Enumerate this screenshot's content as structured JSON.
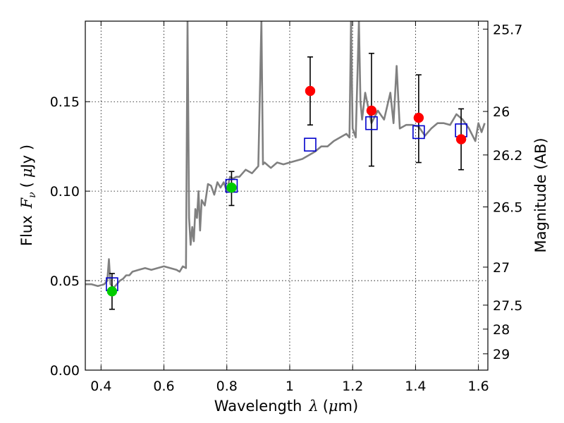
{
  "chart_data": {
    "type": "line",
    "title": "",
    "xlabel": {
      "prefix": "Wavelength",
      "symbol": "λ",
      "unit_open": "(",
      "unit_mu": "μ",
      "unit_rest": "m)"
    },
    "ylabel": {
      "prefix": "Flux",
      "symbol": "F",
      "subscript": "ν",
      "unit_open": "(",
      "unit_mu": "μ",
      "unit_rest": "Jy )"
    },
    "y2label": "Magnitude (AB)",
    "xlim": [
      0.35,
      1.63
    ],
    "ylim": [
      0.0,
      0.195
    ],
    "grid": true,
    "x_ticks": [
      {
        "value": 0.4,
        "label": "0.4"
      },
      {
        "value": 0.6,
        "label": "0.6"
      },
      {
        "value": 0.8,
        "label": "0.8"
      },
      {
        "value": 1.0,
        "label": "1"
      },
      {
        "value": 1.2,
        "label": "1.2"
      },
      {
        "value": 1.4,
        "label": "1.4"
      },
      {
        "value": 1.6,
        "label": "1.6"
      }
    ],
    "y_ticks": [
      {
        "value": 0.0,
        "label": "0.00"
      },
      {
        "value": 0.05,
        "label": "0.05"
      },
      {
        "value": 0.1,
        "label": "0.10"
      },
      {
        "value": 0.15,
        "label": "0.15"
      }
    ],
    "y2_ticks": [
      {
        "value": 25.7,
        "label": "25.7"
      },
      {
        "value": 26,
        "label": "26"
      },
      {
        "value": 26.2,
        "label": "26.2"
      },
      {
        "value": 26.5,
        "label": "26.5"
      },
      {
        "value": 27,
        "label": "27"
      },
      {
        "value": 27.5,
        "label": "27.5"
      },
      {
        "value": 28,
        "label": "28"
      },
      {
        "value": 29,
        "label": "29"
      }
    ],
    "colors": {
      "model": "#808080",
      "observed_red": "#ff0000",
      "observed_green": "#00cc00",
      "model_box": "#0000cc",
      "errorbar": "#000000"
    },
    "series": [
      {
        "type": "line",
        "x": [
          0.35,
          0.37,
          0.39,
          0.41,
          0.42,
          0.425,
          0.43,
          0.435,
          0.44,
          0.45,
          0.46,
          0.47,
          0.48,
          0.49,
          0.5,
          0.52,
          0.54,
          0.56,
          0.58,
          0.6,
          0.62,
          0.64,
          0.65,
          0.66,
          0.67,
          0.675,
          0.68,
          0.685,
          0.69,
          0.695,
          0.7,
          0.705,
          0.71,
          0.715,
          0.72,
          0.73,
          0.74,
          0.75,
          0.76,
          0.77,
          0.78,
          0.79,
          0.8,
          0.81,
          0.82,
          0.83,
          0.84,
          0.86,
          0.88,
          0.9,
          0.91,
          0.915,
          0.92,
          0.94,
          0.96,
          0.98,
          1.0,
          1.02,
          1.04,
          1.06,
          1.08,
          1.1,
          1.12,
          1.14,
          1.16,
          1.18,
          1.19,
          1.195,
          1.2,
          1.21,
          1.22,
          1.225,
          1.23,
          1.24,
          1.26,
          1.28,
          1.3,
          1.32,
          1.33,
          1.34,
          1.35,
          1.37,
          1.39,
          1.41,
          1.43,
          1.45,
          1.47,
          1.49,
          1.51,
          1.53,
          1.55,
          1.57,
          1.59,
          1.6,
          1.61,
          1.62
        ],
        "y": [
          0.048,
          0.048,
          0.047,
          0.048,
          0.05,
          0.062,
          0.048,
          0.047,
          0.046,
          0.048,
          0.05,
          0.051,
          0.053,
          0.053,
          0.055,
          0.056,
          0.057,
          0.056,
          0.057,
          0.058,
          0.057,
          0.056,
          0.055,
          0.058,
          0.057,
          0.195,
          0.085,
          0.07,
          0.08,
          0.072,
          0.09,
          0.085,
          0.1,
          0.078,
          0.095,
          0.092,
          0.104,
          0.103,
          0.098,
          0.105,
          0.102,
          0.105,
          0.1,
          0.108,
          0.107,
          0.108,
          0.108,
          0.112,
          0.11,
          0.114,
          0.195,
          0.115,
          0.116,
          0.113,
          0.116,
          0.115,
          0.116,
          0.117,
          0.118,
          0.12,
          0.122,
          0.125,
          0.125,
          0.128,
          0.13,
          0.132,
          0.13,
          0.195,
          0.135,
          0.13,
          0.195,
          0.15,
          0.14,
          0.155,
          0.138,
          0.145,
          0.14,
          0.155,
          0.138,
          0.17,
          0.135,
          0.137,
          0.137,
          0.136,
          0.131,
          0.135,
          0.138,
          0.138,
          0.137,
          0.143,
          0.14,
          0.135,
          0.128,
          0.138,
          0.133,
          0.138
        ]
      },
      {
        "type": "scatter",
        "marker": "circle",
        "color": "#ff0000",
        "x": [
          1.065,
          1.26,
          1.41,
          1.545
        ],
        "y": [
          0.156,
          0.145,
          0.141,
          0.129
        ],
        "yerr_low": [
          0.137,
          0.114,
          0.116,
          0.112
        ],
        "yerr_high": [
          0.175,
          0.177,
          0.165,
          0.146
        ]
      },
      {
        "type": "scatter",
        "marker": "circle",
        "color": "#00cc00",
        "x": [
          0.435,
          0.815
        ],
        "y": [
          0.044,
          0.102
        ],
        "yerr_low": [
          0.034,
          0.092
        ],
        "yerr_high": [
          0.054,
          0.111
        ]
      },
      {
        "type": "scatter",
        "marker": "square-open",
        "color": "#0000cc",
        "x": [
          0.435,
          0.815,
          1.065,
          1.26,
          1.41,
          1.545
        ],
        "y": [
          0.048,
          0.103,
          0.126,
          0.138,
          0.133,
          0.134
        ]
      }
    ]
  }
}
